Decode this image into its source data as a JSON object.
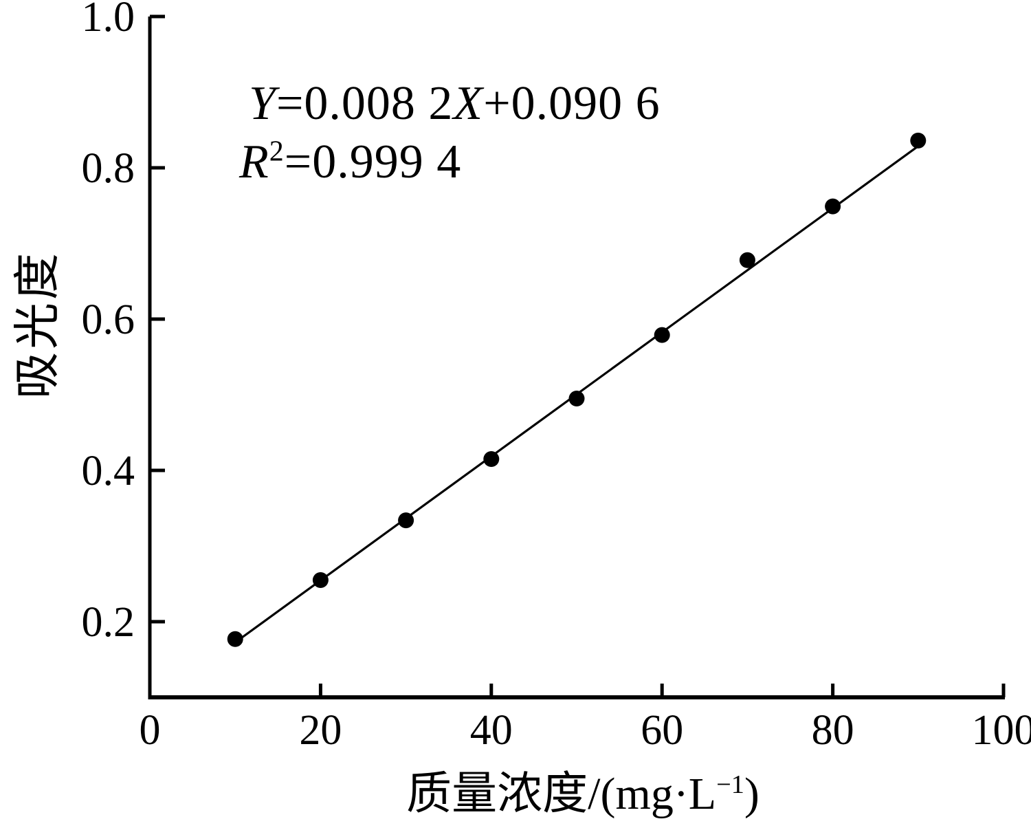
{
  "figure": {
    "background_color": "#ffffff",
    "ink_color": "#000000"
  },
  "chart_data": {
    "type": "scatter",
    "x": [
      10,
      20,
      30,
      40,
      50,
      60,
      70,
      80,
      90
    ],
    "y": [
      0.177,
      0.255,
      0.334,
      0.415,
      0.495,
      0.579,
      0.678,
      0.749,
      0.836
    ],
    "fit": {
      "slope": 0.0082,
      "intercept": 0.0906,
      "x_start": 10,
      "x_end": 90,
      "equation_text": "Y=0.008 2X+0.090 6",
      "r_squared_text": "R²=0.999 4"
    },
    "title": "",
    "xlabel": "质量浓度/(mg·L⁻¹)",
    "ylabel": "吸光度",
    "xlim": [
      0,
      100
    ],
    "ylim": [
      0.1,
      1.0
    ],
    "x_ticks": [
      0,
      20,
      40,
      60,
      80,
      100
    ],
    "x_tick_labels": [
      "0",
      "20",
      "40",
      "60",
      "80",
      "100"
    ],
    "y_ticks": [
      0.2,
      0.4,
      0.6,
      0.8,
      1.0
    ],
    "y_tick_labels": [
      "0.2",
      "0.4",
      "0.6",
      "0.8",
      "1.0"
    ],
    "grid": false,
    "legend": false,
    "marker_shape": "circle",
    "marker_color": "#000000",
    "line_color": "#000000"
  },
  "annotation": {
    "y_var": "Y",
    "eq1_mid": "=0.008 2",
    "x_var": "X",
    "eq1_end": "+0.090 6",
    "r_var": "R",
    "r_sup": "2",
    "eq2_rest": "=0.999 4"
  },
  "x_axis_title": {
    "cjk": "质量浓度",
    "unit_pre": "/(mg·L",
    "sup": "−1",
    "unit_post": ")"
  },
  "y_axis_title": {
    "text": "吸光度"
  }
}
